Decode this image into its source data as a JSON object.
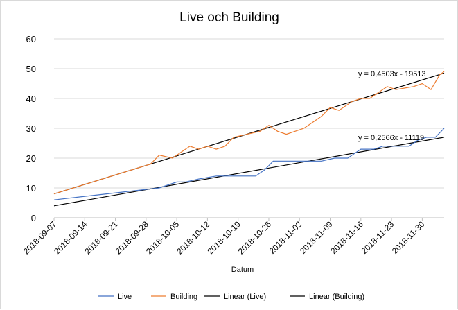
{
  "chart_data": {
    "type": "line",
    "title": "Live och Building",
    "xlabel": "Datum",
    "ylabel": "",
    "ylim": [
      0,
      60
    ],
    "yticks": [
      0,
      10,
      20,
      30,
      40,
      50,
      60
    ],
    "xlim": [
      "2018-09-07",
      "2018-12-05"
    ],
    "x_tick_labels": [
      "2018-09-07",
      "2018-09-14",
      "2018-09-21",
      "2018-09-28",
      "2018-10-05",
      "2018-10-12",
      "2018-10-19",
      "2018-10-26",
      "2018-11-02",
      "2018-11-09",
      "2018-11-16",
      "2018-11-23",
      "2018-11-30"
    ],
    "grid": true,
    "legend_position": "bottom",
    "series": [
      {
        "name": "Live",
        "color": "#4472c4",
        "points": [
          [
            "2018-09-07",
            6
          ],
          [
            "2018-10-01",
            10
          ],
          [
            "2018-10-05",
            12
          ],
          [
            "2018-10-07",
            12
          ],
          [
            "2018-10-10",
            13
          ],
          [
            "2018-10-14",
            14
          ],
          [
            "2018-10-21",
            14
          ],
          [
            "2018-10-23",
            14
          ],
          [
            "2018-10-25",
            16
          ],
          [
            "2018-10-27",
            19
          ],
          [
            "2018-11-07",
            19
          ],
          [
            "2018-11-10",
            20
          ],
          [
            "2018-11-13",
            20
          ],
          [
            "2018-11-16",
            23
          ],
          [
            "2018-11-19",
            23
          ],
          [
            "2018-11-21",
            24
          ],
          [
            "2018-11-27",
            24
          ],
          [
            "2018-11-29",
            26
          ],
          [
            "2018-12-01",
            27
          ],
          [
            "2018-12-03",
            27
          ],
          [
            "2018-12-05",
            30
          ]
        ]
      },
      {
        "name": "Building",
        "color": "#ed7d31",
        "points": [
          [
            "2018-09-07",
            8
          ],
          [
            "2018-09-29",
            18
          ],
          [
            "2018-10-01",
            21
          ],
          [
            "2018-10-04",
            20
          ],
          [
            "2018-10-08",
            24
          ],
          [
            "2018-10-10",
            23
          ],
          [
            "2018-10-12",
            24
          ],
          [
            "2018-10-14",
            23
          ],
          [
            "2018-10-16",
            24
          ],
          [
            "2018-10-18",
            27
          ],
          [
            "2018-10-24",
            29
          ],
          [
            "2018-10-26",
            31
          ],
          [
            "2018-10-28",
            29
          ],
          [
            "2018-10-30",
            28
          ],
          [
            "2018-11-01",
            29
          ],
          [
            "2018-11-03",
            30
          ],
          [
            "2018-11-07",
            34
          ],
          [
            "2018-11-09",
            37
          ],
          [
            "2018-11-11",
            36
          ],
          [
            "2018-11-14",
            39
          ],
          [
            "2018-11-16",
            40
          ],
          [
            "2018-11-18",
            40
          ],
          [
            "2018-11-22",
            44
          ],
          [
            "2018-11-24",
            43
          ],
          [
            "2018-11-28",
            44
          ],
          [
            "2018-11-30",
            45
          ],
          [
            "2018-12-02",
            43
          ],
          [
            "2018-12-04",
            48
          ],
          [
            "2018-12-05",
            49
          ]
        ]
      }
    ],
    "trendlines": [
      {
        "name": "Linear (Live)",
        "color": "#000000",
        "start": [
          "2018-09-07",
          4
        ],
        "end": [
          "2018-12-05",
          27
        ]
      },
      {
        "name": "Linear (Building)",
        "color": "#000000",
        "start": [
          "2018-09-07",
          8
        ],
        "end": [
          "2018-12-05",
          48.5
        ]
      }
    ],
    "annotations": [
      {
        "text": "y = 0,4503x - 19513",
        "near": "Linear (Building)"
      },
      {
        "text": "y = 0,2566x - 11119",
        "near": "Linear (Live)"
      }
    ],
    "legend": [
      "Live",
      "Building",
      "Linear (Live)",
      "Linear (Building)"
    ]
  }
}
